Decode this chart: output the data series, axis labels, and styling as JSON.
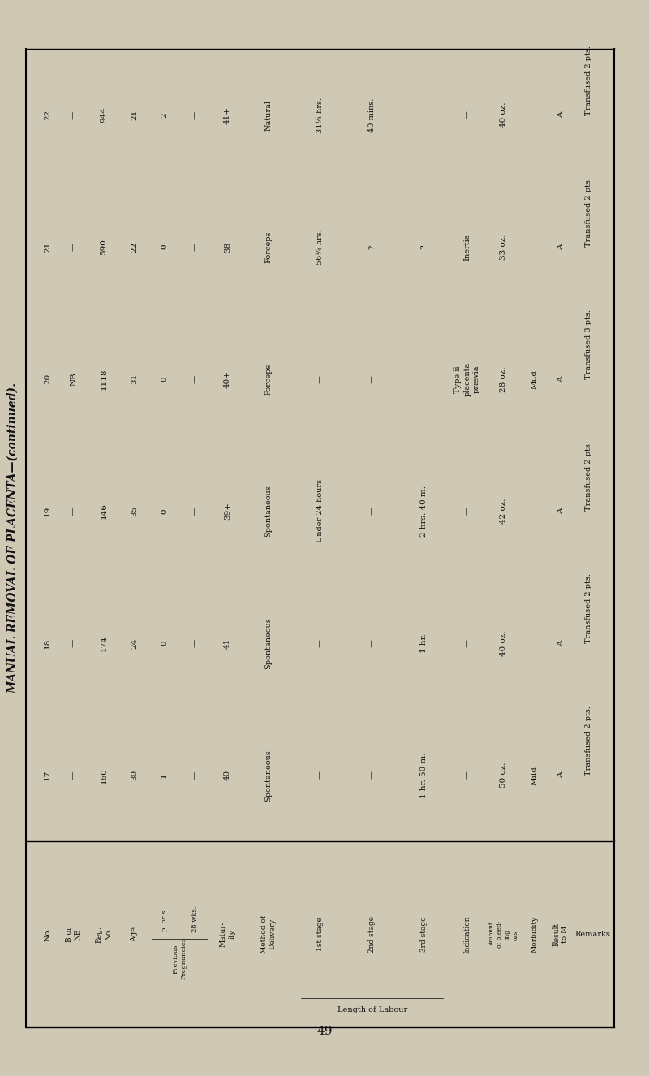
{
  "title": "MANUAL REMOVAL OF PLACENTA—(continued).",
  "bg_color": "#cec8b4",
  "text_color": "#111111",
  "page_number": "49",
  "header_cols": [
    "No.",
    "B or\nNB",
    "Reg.\nNo.",
    "Age",
    "p. or s.",
    "28 wks.",
    "Matur-\nity",
    "Method of\nDelivery",
    "1st stage",
    "2nd stage",
    "3rd stage",
    "Indication",
    "Amount\nof bleed-\ning\nozs.",
    "Morbidity",
    "Result\nto M",
    "Remarks"
  ],
  "labour_header": "Length of Labour",
  "prev_header": "Previous\nPregnancies",
  "rows": [
    [
      "17",
      "—",
      "160",
      "30",
      "1",
      "—",
      "40",
      "Spontaneous",
      "—",
      "—",
      "1 hr. 50 m.",
      "—",
      "50 oz.",
      "Mild",
      "A",
      "Transfused 2 pts."
    ],
    [
      "18",
      "—",
      "174",
      "24",
      "0",
      "—",
      "41",
      "Spontaneous",
      "—",
      "—",
      "1 hr.",
      "—",
      "40 oz.",
      "",
      "A",
      "Transfused 2 pts."
    ],
    [
      "19",
      "—",
      "146",
      "35",
      "0",
      "—",
      "39+",
      "Spontaneous",
      "Under 24 hours",
      "—",
      "2 hrs. 40 m.",
      "—",
      "42 oz.",
      "",
      "A",
      "Transfused 2 pts."
    ],
    [
      "20",
      "NB",
      "1118",
      "31",
      "0",
      "—",
      "40+",
      "Forceps",
      "—",
      "—",
      "—",
      "Type ii\nplacenta\nprævia",
      "28 oz.",
      "Mild",
      "A",
      "Transfused 3 pts."
    ],
    [
      "21",
      "—",
      "590",
      "22",
      "0",
      "—",
      "38",
      "Forceps",
      "56¼ hrs.",
      "?",
      "?",
      "Inertia",
      "33 oz.",
      "",
      "A",
      "Transfused 2 pts."
    ],
    [
      "22",
      "—",
      "944",
      "21",
      "2",
      "—",
      "41+",
      "Natural",
      "31¼ hrs.",
      "40 mins.",
      "—",
      "—",
      "40 oz.",
      "",
      "A",
      "Transfused 2 pts."
    ]
  ]
}
